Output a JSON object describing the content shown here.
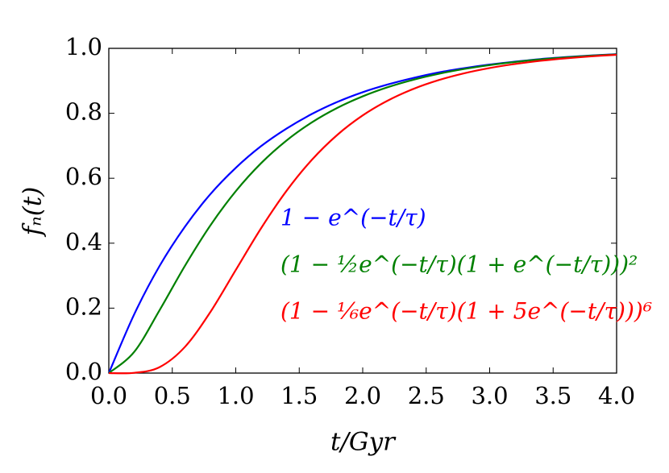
{
  "chart_data": {
    "type": "line",
    "xlabel": "t/Gyr",
    "ylabel": "fₙ(t)",
    "x": [
      0,
      0.2,
      0.4,
      0.6,
      0.8,
      1.0,
      1.2,
      1.4,
      1.6,
      1.8,
      2.0,
      2.2,
      2.4,
      2.6,
      2.8,
      3.0,
      3.2,
      3.4,
      3.6,
      3.8,
      4.0
    ],
    "series": [
      {
        "name": "1 − e^(−t/τ)",
        "color": "#0000ff",
        "values": [
          0,
          0.181,
          0.33,
          0.451,
          0.551,
          0.632,
          0.699,
          0.753,
          0.798,
          0.835,
          0.865,
          0.889,
          0.909,
          0.926,
          0.939,
          0.95,
          0.959,
          0.967,
          0.973,
          0.978,
          0.982
        ]
      },
      {
        "name": "(1 − ½e^(−t/τ)(1 + e^(−t/τ)))²",
        "color": "#008000",
        "values": [
          0,
          0.0653,
          0.1938,
          0.3306,
          0.4548,
          0.56,
          0.6465,
          0.7162,
          0.7721,
          0.8167,
          0.8522,
          0.8807,
          0.9035,
          0.9218,
          0.9365,
          0.9484,
          0.958,
          0.9658,
          0.9721,
          0.9773,
          0.9814
        ]
      },
      {
        "name": "(1 − ⅙e^(−t/τ)(1 + 5e^(−t/τ)))⁶",
        "color": "#ff0000",
        "values": [
          0,
          0.0008,
          0.0184,
          0.0808,
          0.188,
          0.3174,
          0.4464,
          0.5612,
          0.657,
          0.7336,
          0.7935,
          0.8397,
          0.8752,
          0.9024,
          0.9233,
          0.9394,
          0.9519,
          0.9617,
          0.9693,
          0.9754,
          0.9802
        ]
      }
    ],
    "xlim": [
      0,
      4
    ],
    "ylim": [
      0,
      1
    ],
    "xticks": [
      {
        "value": 0,
        "label": "0.0"
      },
      {
        "value": 0.5,
        "label": "0.5"
      },
      {
        "value": 1,
        "label": "1.0"
      },
      {
        "value": 1.5,
        "label": "1.5"
      },
      {
        "value": 2,
        "label": "2.0"
      },
      {
        "value": 2.5,
        "label": "2.5"
      },
      {
        "value": 3,
        "label": "3.0"
      },
      {
        "value": 3.5,
        "label": "3.5"
      },
      {
        "value": 4,
        "label": "4.0"
      }
    ],
    "yticks": [
      {
        "value": 0,
        "label": "0.0"
      },
      {
        "value": 0.2,
        "label": "0.2"
      },
      {
        "value": 0.4,
        "label": "0.4"
      },
      {
        "value": 0.6,
        "label": "0.6"
      },
      {
        "value": 0.8,
        "label": "0.8"
      },
      {
        "value": 1,
        "label": "1.0"
      }
    ],
    "grid": false
  }
}
